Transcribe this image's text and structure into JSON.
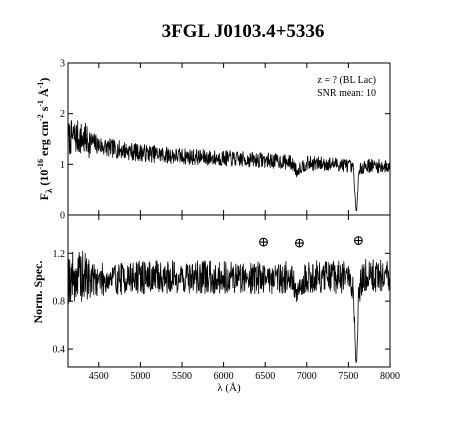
{
  "chart_data": [
    {
      "type": "line",
      "panel": "top",
      "title": "3FGL J0103.4+5336",
      "ylabel": "F_λ (10^-16 erg cm^-2 s^-1 Å^-1)",
      "xlabel": "",
      "xlim": [
        4130,
        8000
      ],
      "ylim": [
        0,
        3
      ],
      "yticks": [
        0,
        1,
        2,
        3
      ],
      "ytick_labels": [
        "0",
        "1",
        "2",
        "3"
      ],
      "annotations": [
        "z = ? (BL Lac)",
        "SNR mean: 10"
      ],
      "series": [
        {
          "x": [
            4130,
            4200,
            4300,
            4400,
            4500,
            4600,
            4700,
            4800,
            4900,
            5000,
            5200,
            5400,
            5600,
            5800,
            6000,
            6200,
            6400,
            6600,
            6800,
            6860,
            6880,
            6900,
            7000,
            7200,
            7400,
            7500,
            7560,
            7590,
            7600,
            7620,
            7650,
            7700,
            7800,
            7900,
            8000
          ],
          "y": [
            1.5,
            1.55,
            1.5,
            1.45,
            1.38,
            1.33,
            1.3,
            1.28,
            1.25,
            1.23,
            1.2,
            1.17,
            1.15,
            1.13,
            1.12,
            1.1,
            1.09,
            1.07,
            1.04,
            0.95,
            0.82,
            0.92,
            1.02,
            1.01,
            1.0,
            0.98,
            0.9,
            0.08,
            0.1,
            0.75,
            0.92,
            0.98,
            0.97,
            0.96,
            0.95
          ]
        }
      ]
    },
    {
      "type": "line",
      "panel": "bottom",
      "ylabel": "Norm. Spec.",
      "xlabel": "λ (Å)",
      "xlim": [
        4130,
        8000
      ],
      "ylim": [
        0.25,
        1.52
      ],
      "xticks": [
        4500,
        5000,
        5500,
        6000,
        6500,
        7000,
        7500,
        8000
      ],
      "xtick_labels": [
        "4500",
        "5000",
        "5500",
        "6000",
        "6500",
        "7000",
        "7500",
        "8000"
      ],
      "yticks": [
        0.4,
        0.8,
        1.2
      ],
      "ytick_labels": [
        "0.4",
        "0.8",
        "1.2"
      ],
      "annotations": [
        "⊕",
        "⊕",
        "⊕"
      ],
      "annotation_x": [
        6480,
        6910,
        7620
      ],
      "annotation_y": [
        1.3,
        1.29,
        1.31
      ],
      "series": [
        {
          "x": [
            4130,
            4300,
            4500,
            5000,
            5500,
            6000,
            6500,
            6800,
            6860,
            6880,
            6900,
            7000,
            7200,
            7400,
            7500,
            7560,
            7590,
            7600,
            7620,
            7650,
            7700,
            7800,
            8000
          ],
          "y": [
            1.0,
            1.0,
            0.98,
            1.0,
            1.0,
            1.0,
            1.0,
            1.0,
            0.92,
            0.78,
            0.9,
            1.0,
            1.0,
            1.0,
            0.99,
            0.9,
            0.28,
            0.3,
            0.8,
            0.97,
            1.02,
            1.02,
            1.0
          ]
        }
      ]
    }
  ]
}
